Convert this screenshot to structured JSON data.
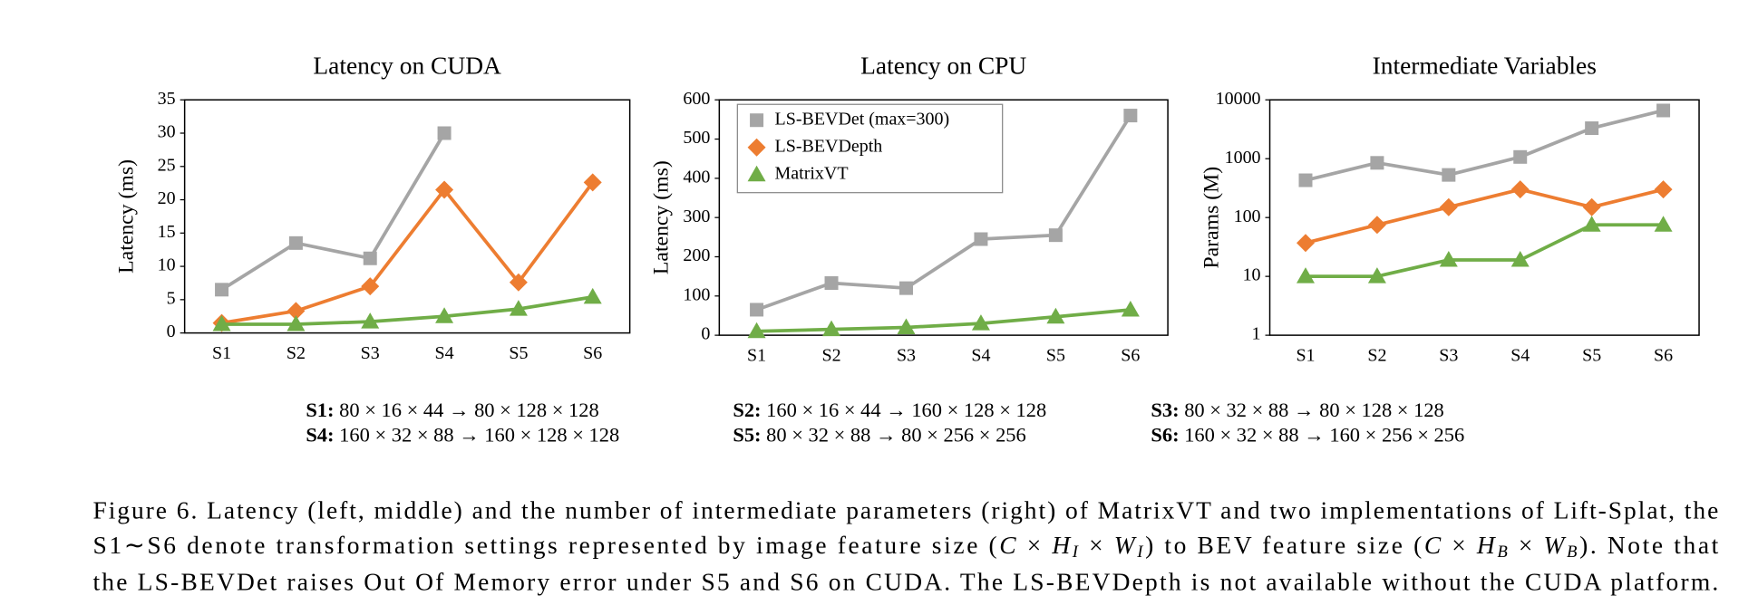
{
  "chart_data": [
    {
      "type": "line",
      "title": "Latency on CUDA",
      "y_label": "Latency (ms)",
      "log_scale": false,
      "categories": [
        "S1",
        "S2",
        "S3",
        "S4",
        "S5",
        "S6"
      ],
      "ylim": [
        0,
        35
      ],
      "yticks": [
        0,
        5,
        10,
        15,
        20,
        25,
        30,
        35
      ],
      "series": [
        {
          "name": "LS-BEVDet (max=300)",
          "color": "#a5a5a5",
          "marker": "square",
          "values": [
            6.5,
            13.5,
            11.2,
            30,
            null,
            null
          ]
        },
        {
          "name": "LS-BEVDepth",
          "color": "#ed7d31",
          "marker": "diamond",
          "values": [
            1.5,
            3.3,
            7,
            21.5,
            7.6,
            22.6
          ]
        },
        {
          "name": "MatrixVT",
          "color": "#70ad47",
          "marker": "triangle",
          "values": [
            1.3,
            1.3,
            1.7,
            2.5,
            3.6,
            5.4
          ]
        }
      ]
    },
    {
      "type": "line",
      "title": "Latency on CPU",
      "y_label": "Latency (ms)",
      "log_scale": false,
      "legend": "upper left",
      "categories": [
        "S1",
        "S2",
        "S3",
        "S4",
        "S5",
        "S6"
      ],
      "ylim": [
        0,
        600
      ],
      "yticks": [
        0,
        100,
        200,
        300,
        400,
        500,
        600
      ],
      "series": [
        {
          "name": "LS-BEVDet (max=300)",
          "color": "#a5a5a5",
          "marker": "square",
          "values": [
            65,
            133,
            120,
            245,
            255,
            560
          ]
        },
        {
          "name": "LS-BEVDepth",
          "color": "#ed7d31",
          "marker": "diamond",
          "values": [
            null,
            null,
            null,
            null,
            null,
            null
          ]
        },
        {
          "name": "MatrixVT",
          "color": "#70ad47",
          "marker": "triangle",
          "values": [
            10,
            15,
            20,
            30,
            47,
            65
          ]
        }
      ]
    },
    {
      "type": "line",
      "title": "Intermediate Variables",
      "y_label": "Params (M)",
      "log_scale": true,
      "categories": [
        "S1",
        "S2",
        "S3",
        "S4",
        "S5",
        "S6"
      ],
      "ylim": [
        1,
        10000
      ],
      "yticks": [
        1,
        10,
        100,
        1000,
        10000
      ],
      "series": [
        {
          "name": "LS-BEVDet (max=300)",
          "color": "#a5a5a5",
          "marker": "square",
          "values": [
            430,
            850,
            530,
            1070,
            3300,
            6600
          ]
        },
        {
          "name": "LS-BEVDepth",
          "color": "#ed7d31",
          "marker": "diamond",
          "values": [
            37,
            75,
            150,
            300,
            150,
            300
          ]
        },
        {
          "name": "MatrixVT",
          "color": "#70ad47",
          "marker": "triangle",
          "values": [
            10,
            10,
            19,
            19,
            75,
            75
          ]
        }
      ]
    }
  ],
  "settings": [
    {
      "name": "S1:",
      "desc": "80 × 16 × 44 → 80 × 128 × 128"
    },
    {
      "name": "S4:",
      "desc": "160 × 32 × 88 → 160 × 128 × 128"
    },
    {
      "name": "S2:",
      "desc": "160 × 16 × 44 → 160 × 128 × 128"
    },
    {
      "name": "S5:",
      "desc": "80 × 32 × 88 → 80 × 256 × 256"
    },
    {
      "name": "S3:",
      "desc": "80 × 32 × 88 → 80 × 128 × 128"
    },
    {
      "name": "S6:",
      "desc": "160 × 32 × 88 → 160 × 256 × 256"
    }
  ],
  "caption": {
    "lines": [
      "Figure 6. Latency (left, middle) and the number of intermediate parameters (right) of MatrixVT and two implementations of Lift-Splat, the",
      [
        "S1∼S6 denote transformation settings represented by image feature size (",
        "C",
        " × ",
        "H",
        "I",
        " × ",
        "W",
        "I",
        ") to BEV feature size (",
        "C",
        " × ",
        "H",
        "B",
        " × ",
        "W",
        "B",
        "). Note that"
      ],
      "the LS-BEVDet raises Out Of Memory error under S5 and S6 on CUDA. The LS-BEVDepth is not available without the CUDA platform."
    ]
  }
}
